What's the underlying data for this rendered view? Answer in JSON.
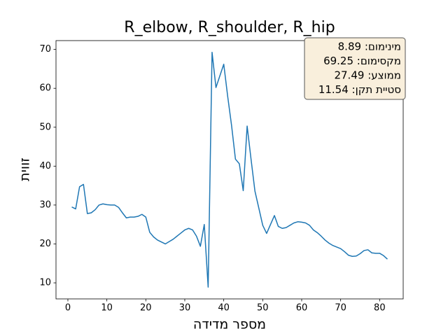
{
  "chart_data": {
    "type": "line",
    "title": "R_elbow, R_shoulder, R_hip",
    "xlabel": "מספר מדידה",
    "ylabel": "זווית",
    "annotations": [
      "מינימום: 8.89",
      "מקסימום: 69.25",
      "ממוצע: 27.49",
      "סטיית תקן: 11.54"
    ],
    "x": [
      1,
      2,
      3,
      4,
      5,
      6,
      7,
      8,
      9,
      10,
      11,
      12,
      13,
      14,
      15,
      16,
      17,
      18,
      19,
      20,
      21,
      22,
      23,
      24,
      25,
      26,
      27,
      28,
      29,
      30,
      31,
      32,
      33,
      34,
      35,
      36,
      37,
      38,
      39,
      40,
      41,
      42,
      43,
      44,
      45,
      46,
      47,
      48,
      49,
      50,
      51,
      52,
      53,
      54,
      55,
      56,
      57,
      58,
      59,
      60,
      61,
      62,
      63,
      64,
      65,
      66,
      67,
      68,
      69,
      70,
      71,
      72,
      73,
      74,
      75,
      76,
      77,
      78,
      79,
      80,
      81,
      82
    ],
    "series": [
      {
        "color": "#1f77b4",
        "values": [
          29.5,
          29,
          34.7,
          35.3,
          27.8,
          28,
          28.8,
          30,
          30.3,
          30.1,
          30,
          30,
          29.4,
          28,
          26.7,
          26.9,
          26.9,
          27.1,
          27.6,
          26.9,
          23,
          21.8,
          21,
          20.5,
          20,
          20.6,
          21.2,
          22,
          22.8,
          23.6,
          24,
          23.6,
          22,
          19.4,
          25,
          8.89,
          69.25,
          60.2,
          63.2,
          66.2,
          58,
          50.5,
          41.8,
          40.6,
          33.7,
          50.3,
          41.8,
          33.6,
          29.2,
          24.8,
          22.7,
          25,
          27.3,
          24.5,
          24,
          24.2,
          24.8,
          25.4,
          25.7,
          25.6,
          25.4,
          24.8,
          23.6,
          22.9,
          22,
          21,
          20.2,
          19.6,
          19.2,
          18.8,
          18,
          17.1,
          16.8,
          16.9,
          17.5,
          18.3,
          18.5,
          17.7,
          17.6,
          17.6,
          17,
          16.1
        ]
      }
    ],
    "xlim": [
      -3.05,
      86.05
    ],
    "xticks": [
      0,
      10,
      20,
      30,
      40,
      50,
      60,
      70,
      80
    ],
    "ylim": [
      5.872,
      72.268
    ],
    "yticks": [
      10,
      20,
      30,
      40,
      50,
      60,
      70
    ],
    "grid": false
  }
}
